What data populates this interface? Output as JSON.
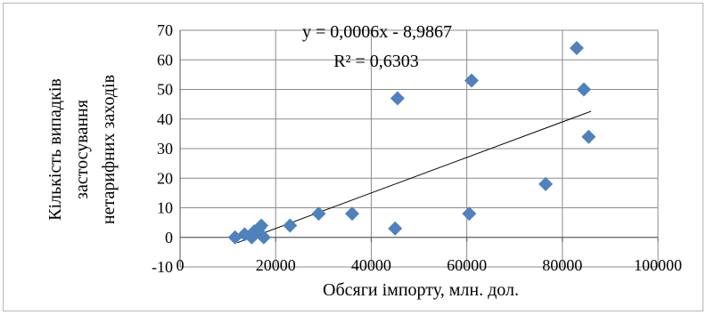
{
  "chart_data": {
    "type": "scatter",
    "title": "",
    "xlabel": "Обсяги імпорту, млн. дол.",
    "ylabel_lines": [
      "Кількість випадків",
      "застосування",
      "нетарифних заходів"
    ],
    "xlim": [
      0,
      100000
    ],
    "ylim": [
      -10,
      70
    ],
    "x_ticks": [
      0,
      20000,
      40000,
      60000,
      80000,
      100000
    ],
    "y_ticks": [
      -10,
      0,
      10,
      20,
      30,
      40,
      50,
      60,
      70
    ],
    "x_tick_labels": [
      "0",
      "20000",
      "40000",
      "60000",
      "80000",
      "100000"
    ],
    "y_tick_labels": [
      "-10",
      "0",
      "10",
      "20",
      "30",
      "40",
      "50",
      "60",
      "70"
    ],
    "grid": "horizontal and vertical major gridlines",
    "legend": "none",
    "marker": "diamond",
    "marker_color": "#4f81bd",
    "series": [
      {
        "points": [
          {
            "x": 11500,
            "y": 0
          },
          {
            "x": 13500,
            "y": 1
          },
          {
            "x": 15000,
            "y": 0
          },
          {
            "x": 15500,
            "y": 2
          },
          {
            "x": 16500,
            "y": 3
          },
          {
            "x": 17000,
            "y": 4
          },
          {
            "x": 17500,
            "y": 0
          },
          {
            "x": 23000,
            "y": 4
          },
          {
            "x": 29000,
            "y": 8
          },
          {
            "x": 36000,
            "y": 8
          },
          {
            "x": 45000,
            "y": 3
          },
          {
            "x": 45500,
            "y": 47
          },
          {
            "x": 60500,
            "y": 8
          },
          {
            "x": 61000,
            "y": 53
          },
          {
            "x": 76500,
            "y": 18
          },
          {
            "x": 83000,
            "y": 64
          },
          {
            "x": 84500,
            "y": 50
          },
          {
            "x": 85500,
            "y": 34
          }
        ]
      }
    ],
    "trendline": {
      "type": "linear",
      "slope": 0.0006,
      "intercept": -8.9867,
      "x_range": [
        12000,
        86000
      ],
      "color": "#000000",
      "equation_label": "y = 0,0006x - 8,9867",
      "r2_label": "R² = 0,6303"
    }
  }
}
